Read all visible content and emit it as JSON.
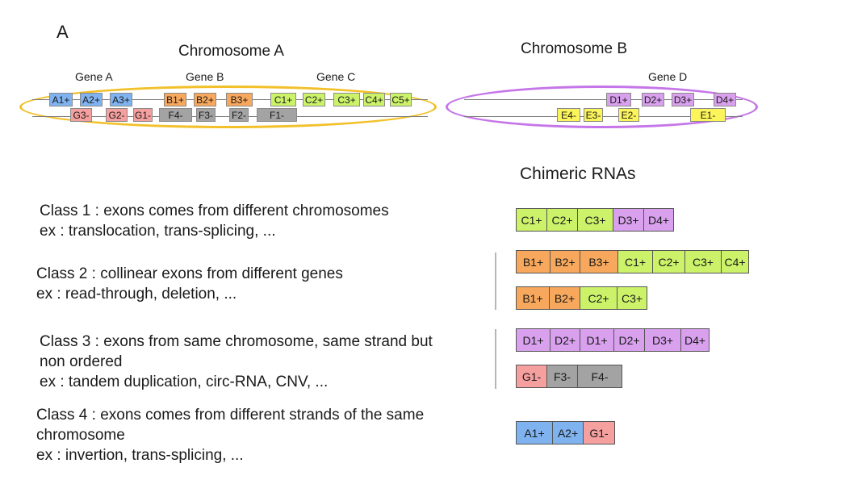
{
  "panel_label": "A",
  "colors": {
    "A": "#7fb3f0",
    "B": "#f7a85c",
    "C": "#ccf26a",
    "D": "#d9a0ee",
    "E": "#fbf45a",
    "F": "#a3a3a3",
    "G": "#f59f9f",
    "ellipse_A": "#f2c029",
    "ellipse_B": "#c575e8"
  },
  "chromosomes": [
    {
      "title": "Chromosome A",
      "genes": [
        "Gene A",
        "Gene B",
        "Gene C"
      ],
      "plus_exons": [
        "A1+",
        "A2+",
        "A3+",
        "B1+",
        "B2+",
        "B3+",
        "C1+",
        "C2+",
        "C3+",
        "C4+",
        "C5+"
      ],
      "minus_exons": [
        "G3-",
        "G2-",
        "G1-",
        "F4-",
        "F3-",
        "F2-",
        "F1-"
      ]
    },
    {
      "title": "Chromosome B",
      "genes": [
        "Gene D"
      ],
      "plus_exons": [
        "D1+",
        "D2+",
        "D3+",
        "D4+"
      ],
      "minus_exons": [
        "E4-",
        "E3-",
        "E2-",
        "E1-"
      ]
    }
  ],
  "chimeric_title": "Chimeric RNAs",
  "classes": [
    {
      "lines": [
        "Class 1 : exons comes from different chromosomes",
        "ex : translocation, trans-splicing, ..."
      ]
    },
    {
      "lines": [
        "Class 2 : collinear exons from different genes",
        "ex : read-through, deletion, ..."
      ]
    },
    {
      "lines": [
        "Class 3 : exons from same chromosome, same strand but",
        "non ordered",
        "ex : tandem duplication, circ-RNA, CNV, ..."
      ]
    },
    {
      "lines": [
        "Class 4 : exons comes from different strands of the same",
        "chromosome",
        "ex : invertion, trans-splicing, ..."
      ]
    }
  ],
  "chimeric_rnas": [
    [
      "C1+",
      "C2+",
      "C3+",
      "D3+",
      "D4+"
    ],
    [
      "B1+",
      "B2+",
      "B3+",
      "C1+",
      "C2+",
      "C3+",
      "C4+"
    ],
    [
      "B1+",
      "B2+",
      "C2+",
      "C3+"
    ],
    [
      "D1+",
      "D2+",
      "D1+",
      "D2+",
      "D3+",
      "D4+"
    ],
    [
      "G1-",
      "F3-",
      "F4-"
    ],
    [
      "A1+",
      "A2+",
      "G1-"
    ]
  ]
}
